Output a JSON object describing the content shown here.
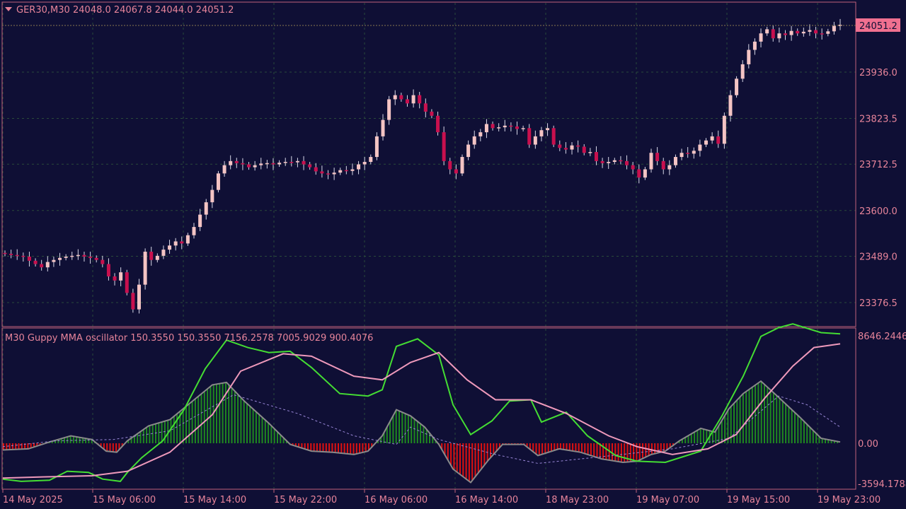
{
  "header": {
    "symbol": "GER30,M30",
    "ohlc": "24048.0 24067.8 24044.0 24051.2"
  },
  "oscillator": {
    "label": "M30 Guppy MMA oscillator 150.3550 150.3550 7156.2578 7005.9029 900.4076"
  },
  "colors": {
    "background": "#0f0f35",
    "frame": "#c0607a",
    "grid": "#2a4a3a",
    "bull_body": "#f4c4c4",
    "bear_body": "#c8104e",
    "wick": "#d8d8e8",
    "hist_pos": "#1f8a1f",
    "hist_neg": "#e01010",
    "hist_outline": "#8a8a8a",
    "green_line": "#44dd33",
    "pink_line": "#ee99bb",
    "signal_dashed": "#9a88d8",
    "price_label_bg": "#f07090"
  },
  "price_axis": {
    "current_price": "24051.2",
    "ticks": [
      "23936.0",
      "23823.5",
      "23712.5",
      "23600.0",
      "23489.0",
      "23376.5"
    ],
    "range": [
      23310,
      24100
    ]
  },
  "osc_axis": {
    "ticks": [
      "8646.2446",
      "0.00",
      "-3594.1788"
    ],
    "range": [
      -3594.1788,
      8646.2446
    ]
  },
  "time_axis": [
    "14 May 2025",
    "15 May 06:00",
    "15 May 14:00",
    "15 May 22:00",
    "16 May 06:00",
    "16 May 14:00",
    "18 May 23:00",
    "19 May 07:00",
    "19 May 15:00",
    "19 May 23:00"
  ],
  "chart_data": {
    "type": "candlestick",
    "symbol": "GER30",
    "timeframe": "M30",
    "closes": [
      23495,
      23492,
      23490,
      23488,
      23478,
      23470,
      23462,
      23475,
      23480,
      23485,
      23488,
      23490,
      23492,
      23488,
      23485,
      23480,
      23470,
      23440,
      23430,
      23450,
      23400,
      23360,
      23420,
      23500,
      23480,
      23490,
      23505,
      23515,
      23525,
      23520,
      23540,
      23560,
      23590,
      23620,
      23650,
      23690,
      23710,
      23720,
      23715,
      23712,
      23705,
      23710,
      23714,
      23715,
      23712,
      23716,
      23718,
      23717,
      23720,
      23712,
      23705,
      23695,
      23690,
      23688,
      23692,
      23698,
      23696,
      23700,
      23712,
      23718,
      23730,
      23780,
      23820,
      23870,
      23880,
      23870,
      23860,
      23880,
      23860,
      23840,
      23830,
      23790,
      23720,
      23700,
      23690,
      23730,
      23760,
      23780,
      23790,
      23810,
      23800,
      23802,
      23806,
      23804,
      23798,
      23800,
      23760,
      23780,
      23795,
      23800,
      23760,
      23752,
      23748,
      23758,
      23755,
      23740,
      23742,
      23720,
      23715,
      23718,
      23722,
      23720,
      23710,
      23700,
      23680,
      23700,
      23740,
      23720,
      23700,
      23710,
      23730,
      23740,
      23738,
      23745,
      23760,
      23770,
      23780,
      23762,
      23830,
      23880,
      23920,
      23955,
      23990,
      24010,
      24030,
      24040,
      24018,
      24030,
      24026,
      24036,
      24030,
      24034,
      24038,
      24030,
      24029,
      24035,
      24048,
      24051
    ],
    "price_ticks": [
      23936.0,
      23823.5,
      23712.5,
      23600.0,
      23489.0,
      23376.5
    ],
    "oscillator": {
      "name": "Guppy MMA oscillator",
      "values": [
        150.355,
        150.355,
        7156.2578,
        7005.9029,
        900.4076
      ],
      "range": [
        -3594.1788,
        8646.2446
      ]
    }
  }
}
